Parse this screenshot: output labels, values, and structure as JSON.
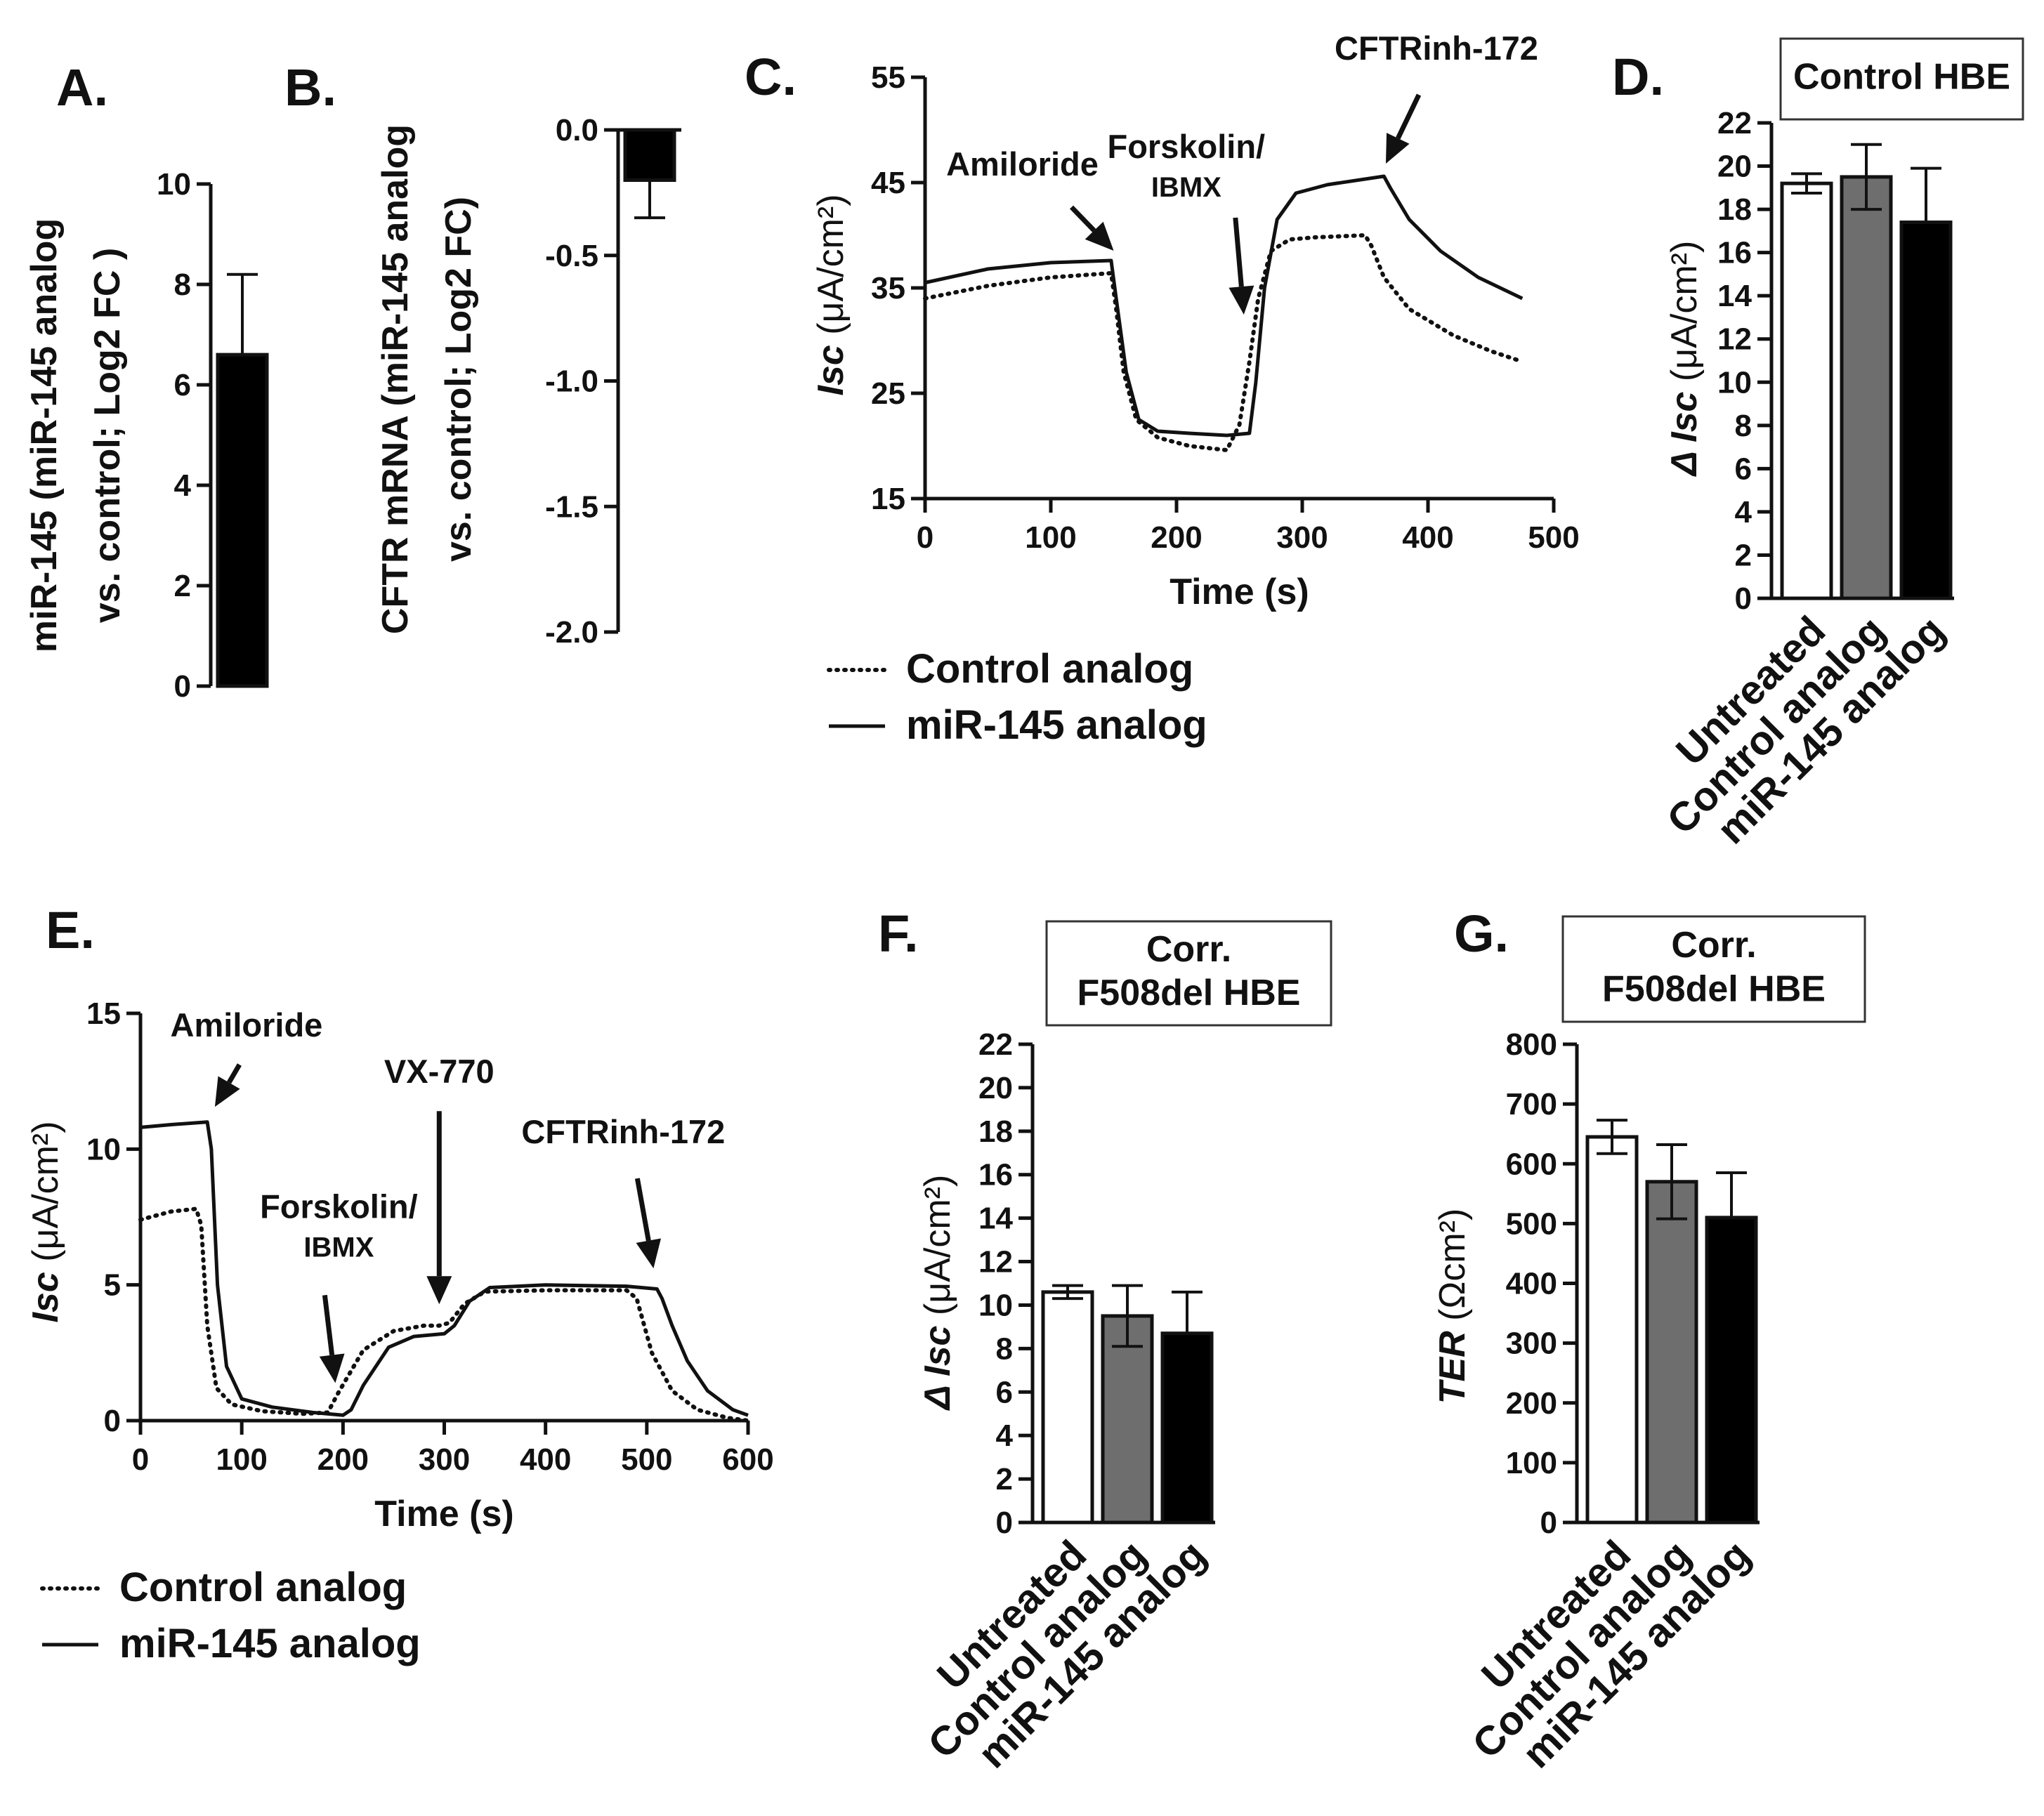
{
  "chart_data": [
    {
      "panel": "A.",
      "type": "bar",
      "categories": [
        ""
      ],
      "values": [
        6.6
      ],
      "errors": [
        1.6
      ],
      "bar_colors": [
        "#000000"
      ],
      "ylabel_lines": [
        "miR-145 (miR-145 analog",
        "vs. control; Log2 FC )"
      ],
      "ylim": [
        0,
        10
      ],
      "yticks": [
        "0",
        "2",
        "4",
        "6",
        "8",
        "10"
      ]
    },
    {
      "panel": "B.",
      "type": "bar",
      "categories": [
        ""
      ],
      "values": [
        -0.2
      ],
      "errors": [
        0.15
      ],
      "bar_colors": [
        "#000000"
      ],
      "ylabel_lines": [
        "CFTR mRNA (miR-145 analog",
        "vs. control; Log2 FC)"
      ],
      "ylim": [
        -2.0,
        0.0
      ],
      "yticks": [
        "0.0",
        "-0.5",
        "-1.0",
        "-1.5",
        "-2.0"
      ]
    },
    {
      "panel": "C.",
      "type": "line",
      "xlabel": "Time (s)",
      "ylabel_main": "Isc",
      "ylabel_unit": "(μA/cm²)",
      "xlim": [
        0,
        500
      ],
      "ylim": [
        15,
        55
      ],
      "xticks": [
        "0",
        "100",
        "200",
        "300",
        "400",
        "500"
      ],
      "yticks": [
        "15",
        "25",
        "35",
        "45",
        "55"
      ],
      "series": [
        {
          "name": "Control analog",
          "style": "dotted",
          "x": [
            0,
            50,
            100,
            148,
            152,
            158,
            168,
            185,
            210,
            240,
            250,
            258,
            265,
            275,
            290,
            310,
            350,
            355,
            365,
            385,
            420,
            450,
            475
          ],
          "y": [
            34,
            35.2,
            36,
            36.4,
            33,
            27,
            22.5,
            20.8,
            20,
            19.6,
            22,
            28,
            34,
            38.5,
            39.6,
            39.8,
            40,
            39,
            36,
            33,
            30.5,
            29,
            28
          ]
        },
        {
          "name": "miR-145 analog",
          "style": "solid",
          "x": [
            0,
            50,
            100,
            148,
            152,
            160,
            170,
            185,
            210,
            240,
            258,
            263,
            270,
            280,
            295,
            320,
            365,
            370,
            385,
            410,
            440,
            475
          ],
          "y": [
            35.5,
            36.8,
            37.4,
            37.6,
            34,
            27,
            22.5,
            21.4,
            21.2,
            21,
            21.2,
            26,
            35,
            41.5,
            44,
            44.8,
            45.6,
            44.5,
            41.5,
            38.5,
            36,
            34
          ]
        }
      ],
      "annotations": [
        {
          "label": "Amiloride",
          "x": 150,
          "y": 38
        },
        {
          "label_lines": [
            "Forskolin/",
            "IBMX"
          ],
          "x": 258,
          "y": 31
        },
        {
          "label": "CFTRinh-172",
          "x": 362,
          "y": 46
        }
      ],
      "legend": [
        "Control analog",
        "miR-145 analog"
      ]
    },
    {
      "panel": "D.",
      "type": "bar",
      "title_box_lines": [
        "Control HBE"
      ],
      "categories": [
        "Untreated",
        "Control analog",
        "miR-145 analog"
      ],
      "values": [
        19.2,
        19.5,
        17.4
      ],
      "errors": [
        0.45,
        1.5,
        2.5
      ],
      "bar_colors": [
        "#ffffff",
        "#6e6e6e",
        "#000000"
      ],
      "ylabel_main": "Δ Isc",
      "ylabel_unit": "(μA/cm²)",
      "ylim": [
        0,
        22
      ],
      "yticks": [
        "0",
        "2",
        "4",
        "6",
        "8",
        "10",
        "12",
        "14",
        "16",
        "18",
        "20",
        "22"
      ]
    },
    {
      "panel": "E.",
      "type": "line",
      "xlabel": "Time (s)",
      "ylabel_main": "Isc",
      "ylabel_unit": "(μA/cm²)",
      "xlim": [
        0,
        600
      ],
      "ylim": [
        0,
        15
      ],
      "xticks": [
        "0",
        "100",
        "200",
        "300",
        "400",
        "500",
        "600"
      ],
      "yticks": [
        "0",
        "5",
        "10",
        "15"
      ],
      "series": [
        {
          "name": "Control analog",
          "style": "dotted",
          "x": [
            0,
            30,
            55,
            60,
            66,
            75,
            90,
            120,
            160,
            185,
            195,
            220,
            250,
            280,
            295,
            305,
            320,
            340,
            400,
            480,
            490,
            505,
            525,
            550,
            580,
            600
          ],
          "y": [
            7.4,
            7.7,
            7.8,
            7.2,
            3.5,
            1.2,
            0.6,
            0.35,
            0.25,
            0.3,
            1.0,
            2.6,
            3.3,
            3.5,
            3.5,
            3.6,
            4.3,
            4.75,
            4.8,
            4.8,
            4.5,
            2.5,
            1.1,
            0.4,
            0.1,
            0.0
          ]
        },
        {
          "name": "miR-145 analog",
          "style": "solid",
          "x": [
            0,
            30,
            66,
            70,
            76,
            85,
            100,
            130,
            170,
            200,
            208,
            220,
            245,
            270,
            300,
            310,
            325,
            345,
            400,
            480,
            510,
            515,
            525,
            540,
            560,
            585,
            600
          ],
          "y": [
            10.8,
            10.9,
            11.0,
            10.0,
            5.0,
            2.0,
            0.8,
            0.5,
            0.3,
            0.2,
            0.4,
            1.3,
            2.7,
            3.1,
            3.2,
            3.5,
            4.4,
            4.9,
            5.0,
            4.95,
            4.85,
            4.5,
            3.5,
            2.2,
            1.1,
            0.4,
            0.2
          ]
        }
      ],
      "annotations": [
        {
          "label": "Amiloride",
          "x": 70,
          "y": 11.3
        },
        {
          "label_lines": [
            "Forskolin/",
            "IBMX"
          ],
          "x": 182,
          "y": 1.0
        },
        {
          "label": "VX-770",
          "x": 295,
          "y": 3.9
        },
        {
          "label": "CFTRinh-172",
          "x": 508,
          "y": 5.3
        }
      ],
      "legend": [
        "Control analog",
        "miR-145 analog"
      ]
    },
    {
      "panel": "F.",
      "type": "bar",
      "title_box_lines": [
        "Corr.",
        "F508del HBE"
      ],
      "categories": [
        "Untreated",
        "Control analog",
        "miR-145 analog"
      ],
      "values": [
        10.6,
        9.5,
        8.7
      ],
      "errors": [
        0.3,
        1.4,
        1.9
      ],
      "bar_colors": [
        "#ffffff",
        "#6e6e6e",
        "#000000"
      ],
      "ylabel_main": "Δ Isc",
      "ylabel_unit": "(μA/cm²)",
      "ylim": [
        0,
        22
      ],
      "yticks": [
        "0",
        "2",
        "4",
        "6",
        "8",
        "10",
        "12",
        "14",
        "16",
        "18",
        "20",
        "22"
      ]
    },
    {
      "panel": "G.",
      "type": "bar",
      "title_box_lines": [
        "Corr.",
        "F508del HBE"
      ],
      "categories": [
        "Untreated",
        "Control analog",
        "miR-145 analog"
      ],
      "values": [
        645,
        570,
        510
      ],
      "errors": [
        28,
        62,
        75
      ],
      "bar_colors": [
        "#ffffff",
        "#6e6e6e",
        "#000000"
      ],
      "ylabel_main": "TER",
      "ylabel_unit": "(Ωcm²)",
      "ylim": [
        0,
        800
      ],
      "yticks": [
        "0",
        "100",
        "200",
        "300",
        "400",
        "500",
        "600",
        "700",
        "800"
      ]
    }
  ]
}
